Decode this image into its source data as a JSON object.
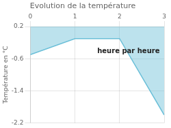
{
  "chart_data": {
    "type": "line",
    "title": "Evolution de la température",
    "y_label": "Température en °C",
    "x": [
      0,
      1,
      2,
      3
    ],
    "series": [
      {
        "name": "Température",
        "color": "#6bbfd8",
        "values": [
          -0.5,
          -0.1,
          -0.1,
          -2.0
        ]
      }
    ],
    "xlim": [
      0,
      3
    ],
    "xticks": [
      0,
      1,
      2,
      3
    ],
    "ylim": [
      -2.2,
      0.2
    ],
    "yticks": [
      0.2,
      -0.6,
      -1.4,
      -2.2
    ],
    "annotations": [
      {
        "text": "heure par heure",
        "x": 2.2,
        "y": -0.42
      }
    ],
    "grid": true,
    "legend": false
  }
}
